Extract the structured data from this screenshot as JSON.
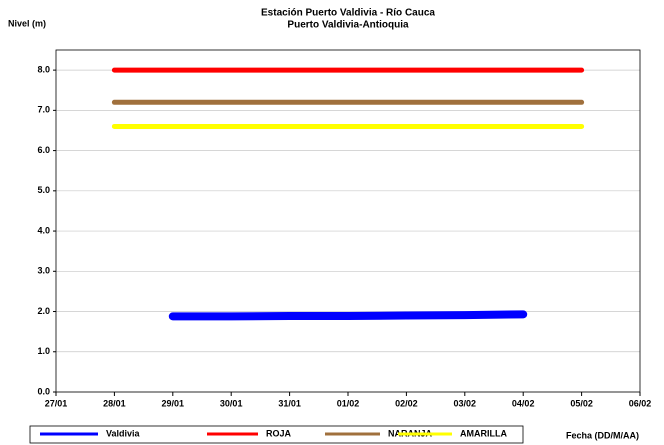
{
  "chart_data": {
    "type": "line",
    "title": "Estación Puerto Valdivia - Río Cauca",
    "subtitle": "Puerto Valdivia-Antioquia",
    "ylabel": "Nivel (m)",
    "xlabel": "Fecha (DD/M/AA)",
    "categories": [
      "27/01",
      "28/01",
      "29/01",
      "30/01",
      "31/01",
      "01/02",
      "02/02",
      "03/02",
      "04/02",
      "05/02",
      "06/02"
    ],
    "series": [
      {
        "name": "Valdivia",
        "color": "#0000ff",
        "values": [
          null,
          null,
          1.88,
          1.88,
          1.89,
          1.89,
          1.9,
          1.91,
          1.93,
          null,
          null
        ]
      },
      {
        "name": "ROJA",
        "color": "#ff0000",
        "values": [
          null,
          8.0,
          8.0,
          8.0,
          8.0,
          8.0,
          8.0,
          8.0,
          8.0,
          8.0,
          null
        ]
      },
      {
        "name": "NARANJA",
        "color": "#a0703c",
        "values": [
          null,
          7.2,
          7.2,
          7.2,
          7.2,
          7.2,
          7.2,
          7.2,
          7.2,
          7.2,
          null
        ]
      },
      {
        "name": "AMARILLA",
        "color": "#ffff00",
        "values": [
          null,
          6.6,
          6.6,
          6.6,
          6.6,
          6.6,
          6.6,
          6.6,
          6.6,
          6.6,
          null
        ]
      }
    ],
    "ylim": [
      0,
      8.5
    ],
    "yticks": [
      {
        "value": 0,
        "label": "0.0"
      },
      {
        "value": 1,
        "label": "1.0"
      },
      {
        "value": 2,
        "label": "2.0"
      },
      {
        "value": 3,
        "label": "3.0"
      },
      {
        "value": 4,
        "label": "4.0"
      },
      {
        "value": 5,
        "label": "5.0"
      },
      {
        "value": 6,
        "label": "6.0"
      },
      {
        "value": 7,
        "label": "7.0"
      },
      {
        "value": 8,
        "label": "8.0"
      }
    ],
    "grid": true,
    "legend": "bottom"
  }
}
